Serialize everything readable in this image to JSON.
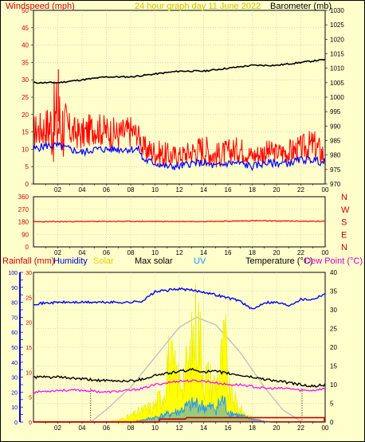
{
  "colors": {
    "background": "#ffffcc",
    "grid": "#b8b8a0",
    "wind_avg": "#ff0000",
    "wind_gust": "#ff0000",
    "wind_low": "#0000ff",
    "barometer": "#000000",
    "direction": "#ff0000",
    "rain": "#c00000",
    "humidity": "#0000ff",
    "solar": "#ffff00",
    "max_solar": "#c0c0c0",
    "uv": "#1e90ff",
    "temperature": "#000000",
    "dew_point": "#ff00ff"
  },
  "header": {
    "windspeed_label": "Windspeed (mph)",
    "title": "24 hour graph day  11 June 2022",
    "barometer_label": "Barometer (mb)"
  },
  "bottom_header": {
    "rainfall_label": "Rainfall (mm)",
    "humidity_label": "Humidity",
    "solar_label": "Solar",
    "max_solar_label": "Max solar",
    "uv_label": "UV",
    "temperature_label": "Temperature (°C)",
    "dew_point_label": "Dew Point (°C)"
  },
  "chart_data": [
    {
      "id": "wind",
      "type": "line",
      "x_labels": [
        "02",
        "04",
        "06",
        "08",
        "10",
        "12",
        "14",
        "16",
        "18",
        "20",
        "22",
        "00"
      ],
      "y_left": {
        "label": "Windspeed (mph)",
        "min": 0,
        "max": 50,
        "ticks": [
          0,
          5,
          10,
          15,
          20,
          25,
          30,
          35,
          40,
          45,
          50
        ]
      },
      "y_right": {
        "label": "Barometer (mb)",
        "min": 970,
        "max": 1030,
        "ticks": [
          970,
          975,
          980,
          985,
          990,
          995,
          1000,
          1005,
          1010,
          1015,
          1020,
          1025,
          1030
        ]
      },
      "series": [
        {
          "key": "barometer",
          "axis": "right",
          "x": [
            0,
            2,
            4,
            6,
            8,
            10,
            12,
            14,
            16,
            18,
            20,
            22,
            24
          ],
          "values": [
            1005,
            1005,
            1006,
            1007,
            1007,
            1008,
            1009,
            1009,
            1010,
            1011,
            1011,
            1012,
            1013
          ]
        },
        {
          "key": "gust",
          "axis": "left",
          "x": [
            0,
            1,
            2,
            3,
            4,
            5,
            6,
            7,
            8,
            8.7,
            9,
            10,
            11,
            12,
            13,
            14,
            15,
            16,
            17,
            18,
            19,
            20,
            21,
            22,
            23,
            24
          ],
          "values": [
            20,
            22,
            33,
            20,
            19,
            21,
            20,
            19,
            20,
            17,
            14,
            13,
            12,
            11,
            13,
            15,
            12,
            13,
            14,
            11,
            13,
            12,
            13,
            14,
            16,
            12
          ]
        },
        {
          "key": "avg",
          "axis": "left",
          "x": [
            0,
            1,
            2,
            3,
            4,
            5,
            6,
            7,
            8,
            8.7,
            9,
            10,
            11,
            12,
            13,
            14,
            15,
            16,
            17,
            18,
            19,
            20,
            21,
            22,
            23,
            24
          ],
          "values": [
            15,
            16,
            17,
            15,
            14,
            16,
            15,
            14,
            15,
            14,
            10,
            9,
            8,
            8,
            9,
            10,
            8,
            9,
            10,
            8,
            9,
            9,
            9,
            10,
            11,
            8
          ]
        },
        {
          "key": "low",
          "axis": "left",
          "x": [
            0,
            1,
            2,
            3,
            4,
            5,
            6,
            7,
            8,
            8.7,
            9,
            10,
            11,
            12,
            13,
            14,
            15,
            16,
            17,
            18,
            19,
            20,
            21,
            22,
            23,
            24
          ],
          "values": [
            10,
            11,
            11,
            10,
            9,
            10,
            10,
            10,
            10,
            10,
            7,
            6,
            5,
            5,
            6,
            6,
            5,
            6,
            6,
            5,
            6,
            6,
            6,
            7,
            7,
            6
          ]
        }
      ]
    },
    {
      "id": "direction",
      "type": "line",
      "x_labels": [
        "02",
        "04",
        "06",
        "08",
        "10",
        "12",
        "14",
        "16",
        "18",
        "20",
        "22",
        "00"
      ],
      "y_left": {
        "min": 0,
        "max": 360,
        "ticks": [
          0,
          90,
          180,
          270,
          360
        ]
      },
      "y_right": {
        "ticks": [
          "N",
          "E",
          "S",
          "W",
          "N"
        ]
      },
      "series": [
        {
          "key": "direction",
          "x": [
            0,
            4,
            8,
            12,
            16,
            18,
            20,
            24
          ],
          "values": [
            180,
            182,
            183,
            182,
            184,
            188,
            186,
            183
          ]
        }
      ]
    },
    {
      "id": "weather",
      "type": "line",
      "x_labels": [
        "02",
        "04",
        "06",
        "08",
        "10",
        "12",
        "14",
        "16",
        "18",
        "20",
        "22",
        "00"
      ],
      "y_rain": {
        "min": 0,
        "max": 30,
        "ticks": [
          0,
          5,
          10,
          15,
          20,
          25,
          30
        ]
      },
      "y_humidity": {
        "min": 0,
        "max": 100,
        "ticks": [
          0,
          10,
          20,
          30,
          40,
          50,
          60,
          70,
          80,
          90,
          100
        ]
      },
      "y_temp": {
        "min": 0,
        "max": 40,
        "ticks": [
          0,
          5,
          10,
          15,
          20,
          25,
          30,
          35,
          40
        ]
      },
      "markers_x": [
        4.7,
        22.1
      ],
      "series": [
        {
          "key": "humidity",
          "x": [
            0,
            2,
            4,
            6,
            8,
            9,
            10,
            11,
            12,
            13,
            14,
            15,
            16,
            17,
            18,
            19,
            20,
            21,
            22,
            23,
            24
          ],
          "values": [
            79,
            80,
            80,
            80,
            80,
            81,
            87,
            88,
            89,
            88,
            87,
            85,
            83,
            81,
            75,
            80,
            80,
            78,
            82,
            82,
            86
          ]
        },
        {
          "key": "temperature",
          "x": [
            0,
            2,
            4,
            6,
            8,
            9,
            10,
            11,
            12,
            13,
            14,
            15,
            16,
            17,
            18,
            19,
            20,
            21,
            22,
            23,
            24
          ],
          "values": [
            12,
            12,
            11.5,
            11,
            11,
            11.5,
            12.5,
            13,
            13.5,
            14,
            13.5,
            13.5,
            13,
            12.5,
            12,
            11.5,
            11,
            10.5,
            10,
            9.5,
            10
          ]
        },
        {
          "key": "dew_point",
          "x": [
            0,
            2,
            4,
            6,
            8,
            9,
            10,
            11,
            12,
            13,
            14,
            15,
            16,
            17,
            18,
            19,
            20,
            21,
            22,
            23,
            24
          ],
          "values": [
            8,
            8.5,
            8.5,
            8,
            8.5,
            9,
            10,
            10.5,
            11,
            11,
            11,
            10.5,
            10,
            10,
            9.5,
            9,
            9,
            9,
            8.5,
            8.5,
            9
          ]
        },
        {
          "key": "max_solar",
          "x": [
            4.7,
            6,
            8,
            10,
            12,
            13.4,
            15,
            17,
            19,
            20.5,
            22.1
          ],
          "values": [
            0,
            2.5,
            7,
            13,
            19,
            21,
            19.5,
            14,
            7,
            2.5,
            0
          ]
        },
        {
          "key": "solar",
          "x": [
            6,
            7,
            8,
            9,
            10,
            10.8,
            11,
            12,
            12.8,
            13,
            13.5,
            14,
            15,
            15.8,
            16,
            17,
            18,
            19
          ],
          "values": [
            0,
            0.5,
            1.5,
            3,
            4,
            8,
            16,
            10,
            14,
            18,
            27,
            12,
            9,
            20,
            8,
            3,
            1,
            0
          ]
        },
        {
          "key": "uv",
          "x": [
            8,
            9,
            10,
            11,
            12,
            12.6,
            13,
            13.5,
            14,
            15,
            15.6,
            16,
            17,
            18,
            19,
            19.5
          ],
          "values": [
            0,
            0.7,
            1.5,
            2.5,
            3.5,
            5,
            5.5,
            6,
            5,
            4.5,
            7.5,
            3.5,
            2,
            1,
            0.3,
            0
          ]
        },
        {
          "key": "rain",
          "x": [
            0,
            10.3,
            10.4,
            12.5,
            12.6,
            24
          ],
          "values": [
            0,
            0,
            0.6,
            0.6,
            0.9,
            0.9
          ]
        }
      ]
    }
  ]
}
